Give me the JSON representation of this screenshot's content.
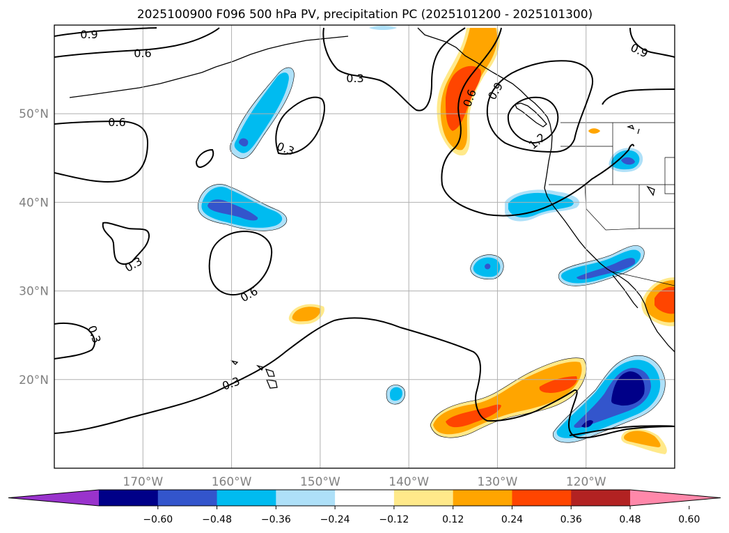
{
  "title": "2025100900 F096 500 hPa PV, precipitation PC (2025101200 - 2025101300)",
  "map": {
    "lon_range": [
      -180,
      -110
    ],
    "lat_range": [
      10,
      60
    ],
    "lon_ticks": [
      "170°W",
      "160°W",
      "150°W",
      "140°W",
      "130°W",
      "120°W"
    ],
    "lat_ticks": [
      "50°N",
      "40°N",
      "30°N",
      "20°N"
    ]
  },
  "contour_labels": [
    "0.9",
    "0.6",
    "0.3",
    "0.6",
    "0.3",
    "0.3",
    "0.6",
    "0.3",
    "0.3",
    "0.6",
    "0.9",
    "1.2",
    "0.9"
  ],
  "colorbar": {
    "ticks": [
      "−0.60",
      "−0.48",
      "−0.36",
      "−0.24",
      "−0.12",
      "0.12",
      "0.24",
      "0.36",
      "0.48",
      "0.60"
    ],
    "colors": [
      "#9933cc",
      "#000088",
      "#3355cc",
      "#00bbf0",
      "#aee0f8",
      "#ffffff",
      "#ffe98a",
      "#ffa500",
      "#ff4500",
      "#b22222",
      "#ff88aa"
    ]
  },
  "colors": {
    "pos1": "#ffe98a",
    "pos2": "#ffa500",
    "pos3": "#ff4500",
    "neg1": "#aee0f8",
    "neg2": "#00bbf0",
    "neg3": "#3355cc",
    "neg4": "#000088",
    "grid": "#b0b0b0"
  }
}
